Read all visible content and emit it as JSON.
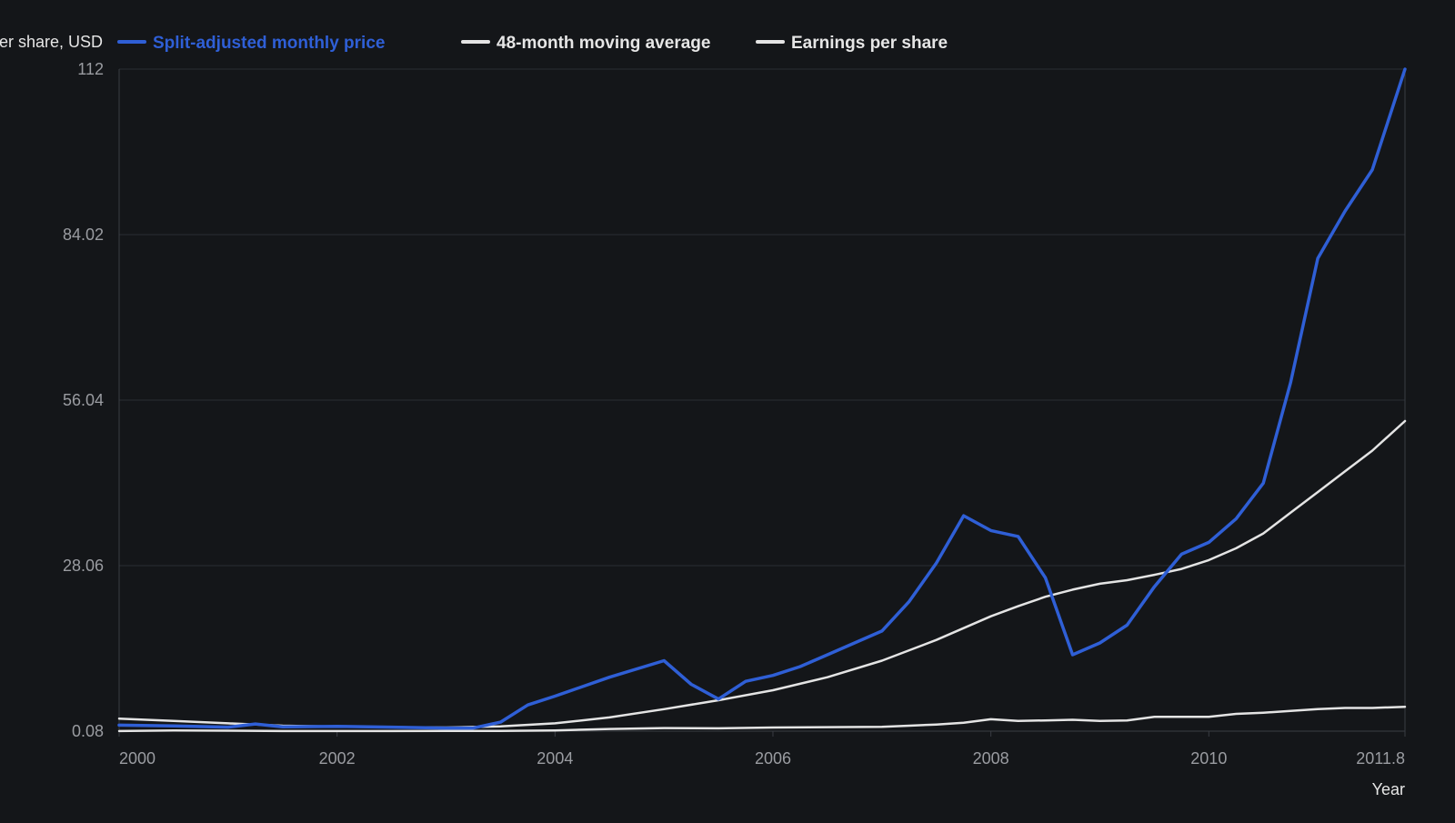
{
  "chart_data": {
    "type": "line",
    "ylabel": "Price per share, USD",
    "xlabel": "Year",
    "xlim": [
      2000,
      2011.8
    ],
    "ylim": [
      0.08,
      112
    ],
    "yticks": [
      "112",
      "84.02",
      "56.04",
      "28.06",
      "0.08"
    ],
    "xticks": [
      "2000",
      "2002",
      "2004",
      "2006",
      "2008",
      "2010",
      "2011.8"
    ],
    "grid": true,
    "legend_position": "top-left",
    "series": [
      {
        "name": "Split-adjusted monthly price",
        "color": "#2f5fd6",
        "x": [
          2000,
          2000.5,
          2001,
          2001.25,
          2001.5,
          2002,
          2002.5,
          2003,
          2003.25,
          2003.5,
          2003.75,
          2004,
          2004.5,
          2005,
          2005.25,
          2005.5,
          2005.75,
          2006,
          2006.25,
          2006.5,
          2007,
          2007.25,
          2007.5,
          2007.75,
          2008,
          2008.25,
          2008.5,
          2008.75,
          2009,
          2009.25,
          2009.5,
          2009.75,
          2010,
          2010.25,
          2010.5,
          2010.75,
          2011,
          2011.25,
          2011.5,
          2011.8
        ],
        "values": [
          1.1,
          0.95,
          0.75,
          1.3,
          0.8,
          0.9,
          0.75,
          0.6,
          0.6,
          1.6,
          4.5,
          6.0,
          9.2,
          12.0,
          8.0,
          5.5,
          8.5,
          9.5,
          11.0,
          13.0,
          17.0,
          22.0,
          28.5,
          36.5,
          34.0,
          33.0,
          26.0,
          13.0,
          15.0,
          18.0,
          24.5,
          30.0,
          32.0,
          36.0,
          42.0,
          59.0,
          80.0,
          88.0,
          95.0,
          112.0
        ]
      },
      {
        "name": "48-month moving average",
        "color": "#e4e4e4",
        "x": [
          2000,
          2000.5,
          2001,
          2001.5,
          2002,
          2002.5,
          2003,
          2003.5,
          2004,
          2004.5,
          2005,
          2005.5,
          2006,
          2006.5,
          2007,
          2007.5,
          2008,
          2008.25,
          2008.5,
          2008.75,
          2009,
          2009.25,
          2009.5,
          2009.75,
          2010,
          2010.25,
          2010.5,
          2010.75,
          2011,
          2011.25,
          2011.5,
          2011.8
        ],
        "values": [
          2.2,
          1.8,
          1.4,
          1.0,
          0.85,
          0.75,
          0.7,
          0.9,
          1.4,
          2.4,
          3.8,
          5.3,
          7.0,
          9.2,
          12.0,
          15.5,
          19.5,
          21.2,
          22.8,
          24.0,
          25.0,
          25.6,
          26.5,
          27.5,
          29.0,
          31.0,
          33.5,
          37.0,
          40.5,
          44.0,
          47.5,
          52.5
        ]
      },
      {
        "name": "Earnings per share",
        "color": "#e4e4e4",
        "x": [
          2000,
          2000.5,
          2001,
          2001.5,
          2002,
          2002.5,
          2003,
          2003.5,
          2004,
          2004.5,
          2005,
          2005.5,
          2006,
          2006.5,
          2007,
          2007.25,
          2007.5,
          2007.75,
          2008,
          2008.25,
          2008.5,
          2008.75,
          2009,
          2009.25,
          2009.5,
          2009.75,
          2010,
          2010.25,
          2010.5,
          2010.75,
          2011,
          2011.25,
          2011.5,
          2011.8
        ],
        "values": [
          0.1,
          0.2,
          0.15,
          0.1,
          0.1,
          0.1,
          0.12,
          0.12,
          0.2,
          0.45,
          0.6,
          0.55,
          0.7,
          0.75,
          0.8,
          1.0,
          1.2,
          1.5,
          2.1,
          1.8,
          1.9,
          2.0,
          1.8,
          1.9,
          2.5,
          2.5,
          2.5,
          3.0,
          3.2,
          3.5,
          3.8,
          4.0,
          4.0,
          4.2
        ]
      }
    ]
  }
}
